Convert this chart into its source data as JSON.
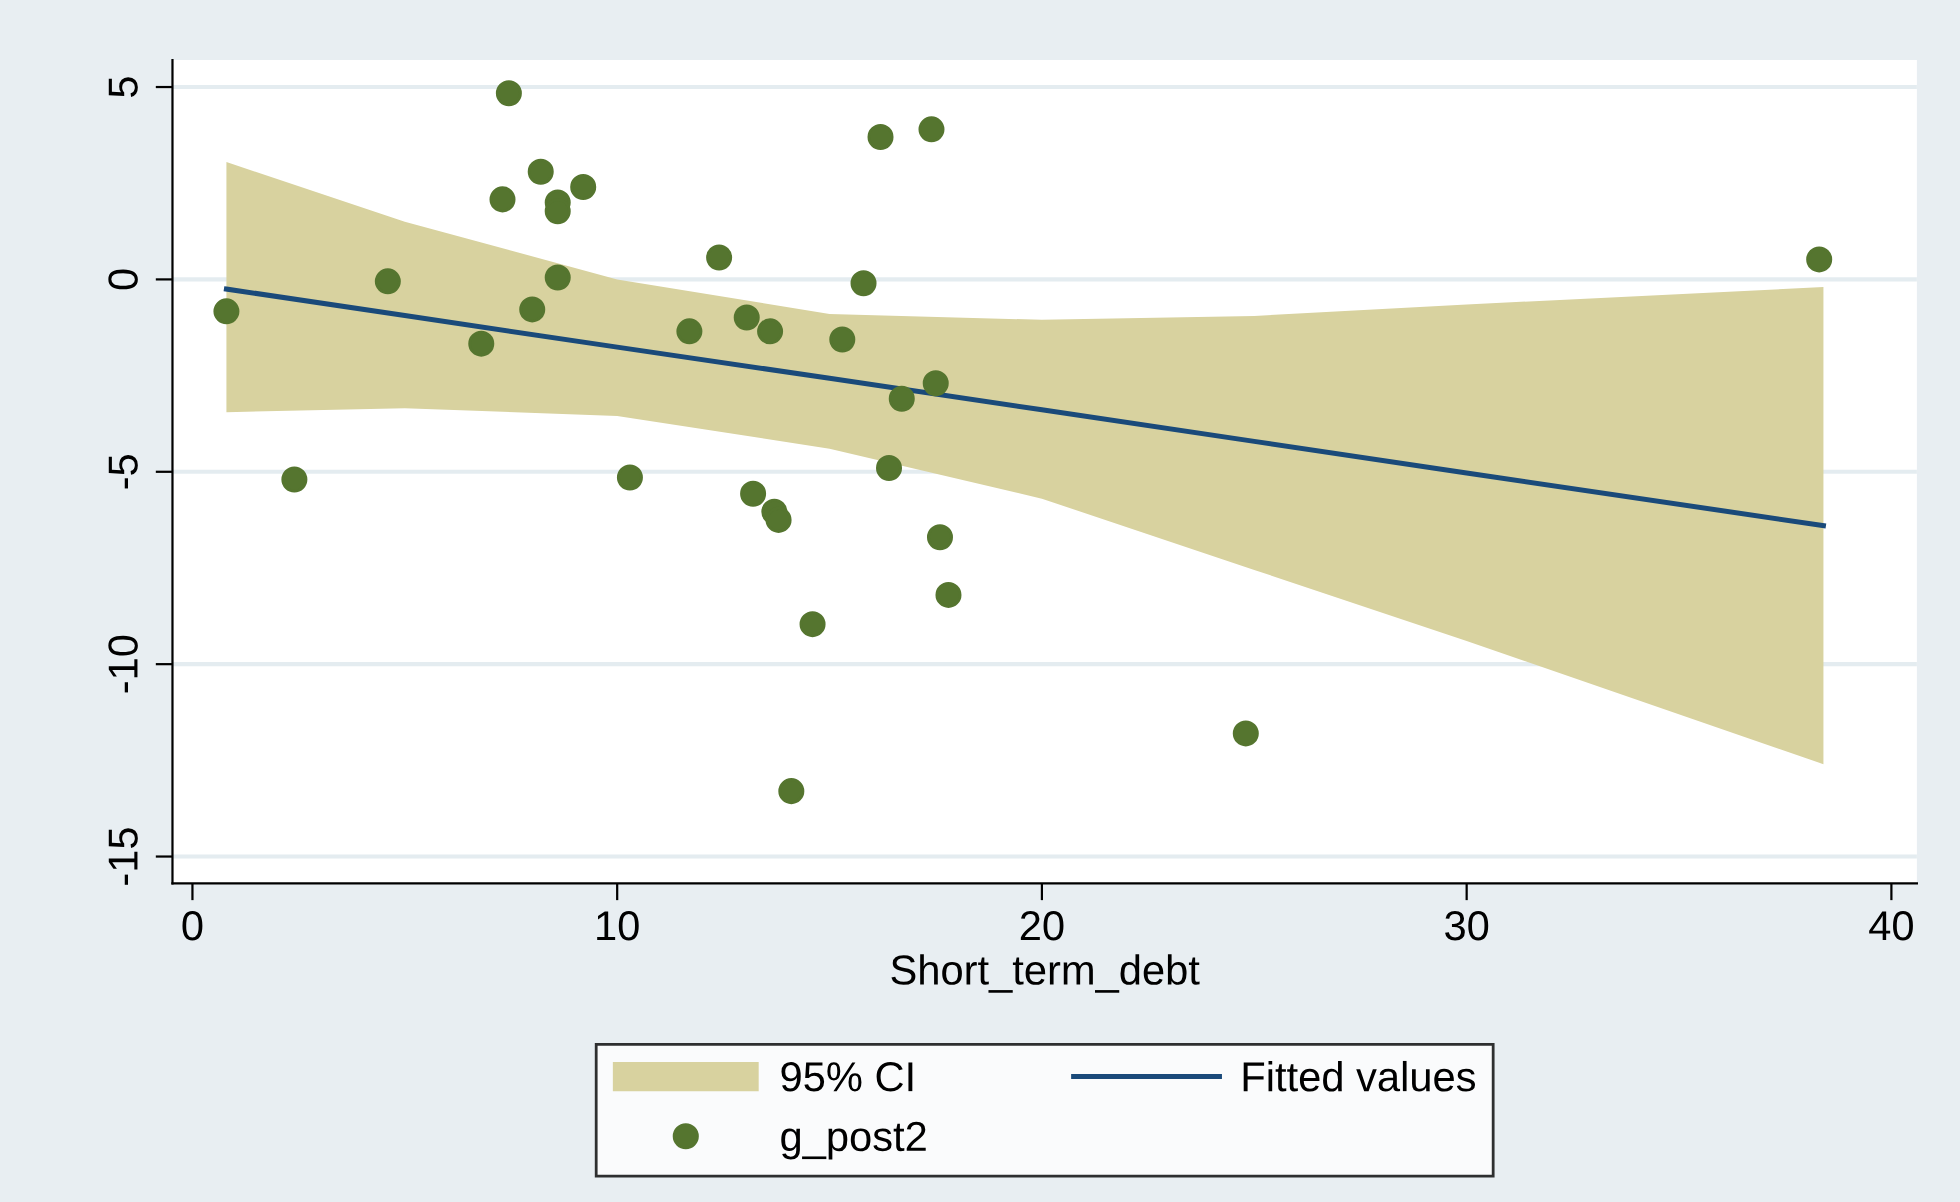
{
  "chart_data": {
    "type": "scatter",
    "xlabel": "Short_term_debt",
    "xlim": [
      -0.47,
      40.6
    ],
    "ylim": [
      -15.7,
      5.7
    ],
    "xticks": [
      0,
      10,
      20,
      30,
      40
    ],
    "yticks": [
      -15,
      -10,
      -5,
      0,
      5
    ],
    "grid": "y",
    "legend": "bottom",
    "annotations": [
      "95% CI"
    ],
    "series": [
      {
        "name": "Fitted values",
        "type": "line",
        "color": "#1a4a7a",
        "marker": "none",
        "x": [
          0.8,
          5,
          10,
          15,
          20,
          25,
          30,
          38.4
        ],
        "values": [
          -0.25,
          -0.94,
          -1.76,
          -2.57,
          -3.39,
          -4.21,
          -5.03,
          -6.4
        ],
        "lower": [
          -3.45,
          -3.35,
          -3.55,
          -4.4,
          -5.7,
          -7.55,
          -9.4,
          -12.6
        ],
        "upper": [
          3.05,
          1.5,
          0.0,
          -0.9,
          -1.05,
          -0.95,
          -0.65,
          -0.2
        ]
      },
      {
        "name": "g_post2",
        "color": "#55752f",
        "marker": "circle",
        "x": [
          0.8,
          2.4,
          4.6,
          6.8,
          7.3,
          7.45,
          8.0,
          8.2,
          8.6,
          8.6,
          8.6,
          9.2,
          10.3,
          11.7,
          12.4,
          13.05,
          13.2,
          13.6,
          13.7,
          13.8,
          14.1,
          14.6,
          15.3,
          15.8,
          16.2,
          16.4,
          16.7,
          17.4,
          17.5,
          17.6,
          17.8,
          24.8,
          38.3
        ],
        "values": [
          -0.83,
          -5.2,
          -0.05,
          -1.67,
          2.08,
          4.84,
          -0.78,
          2.8,
          2.0,
          1.77,
          0.05,
          2.4,
          -5.15,
          -1.35,
          0.57,
          -0.99,
          -5.57,
          -1.35,
          -6.04,
          -6.25,
          -13.3,
          -8.96,
          -1.56,
          -0.1,
          3.7,
          -4.9,
          -3.1,
          3.9,
          -2.7,
          -6.7,
          -8.2,
          -11.8,
          0.52
        ]
      }
    ]
  }
}
